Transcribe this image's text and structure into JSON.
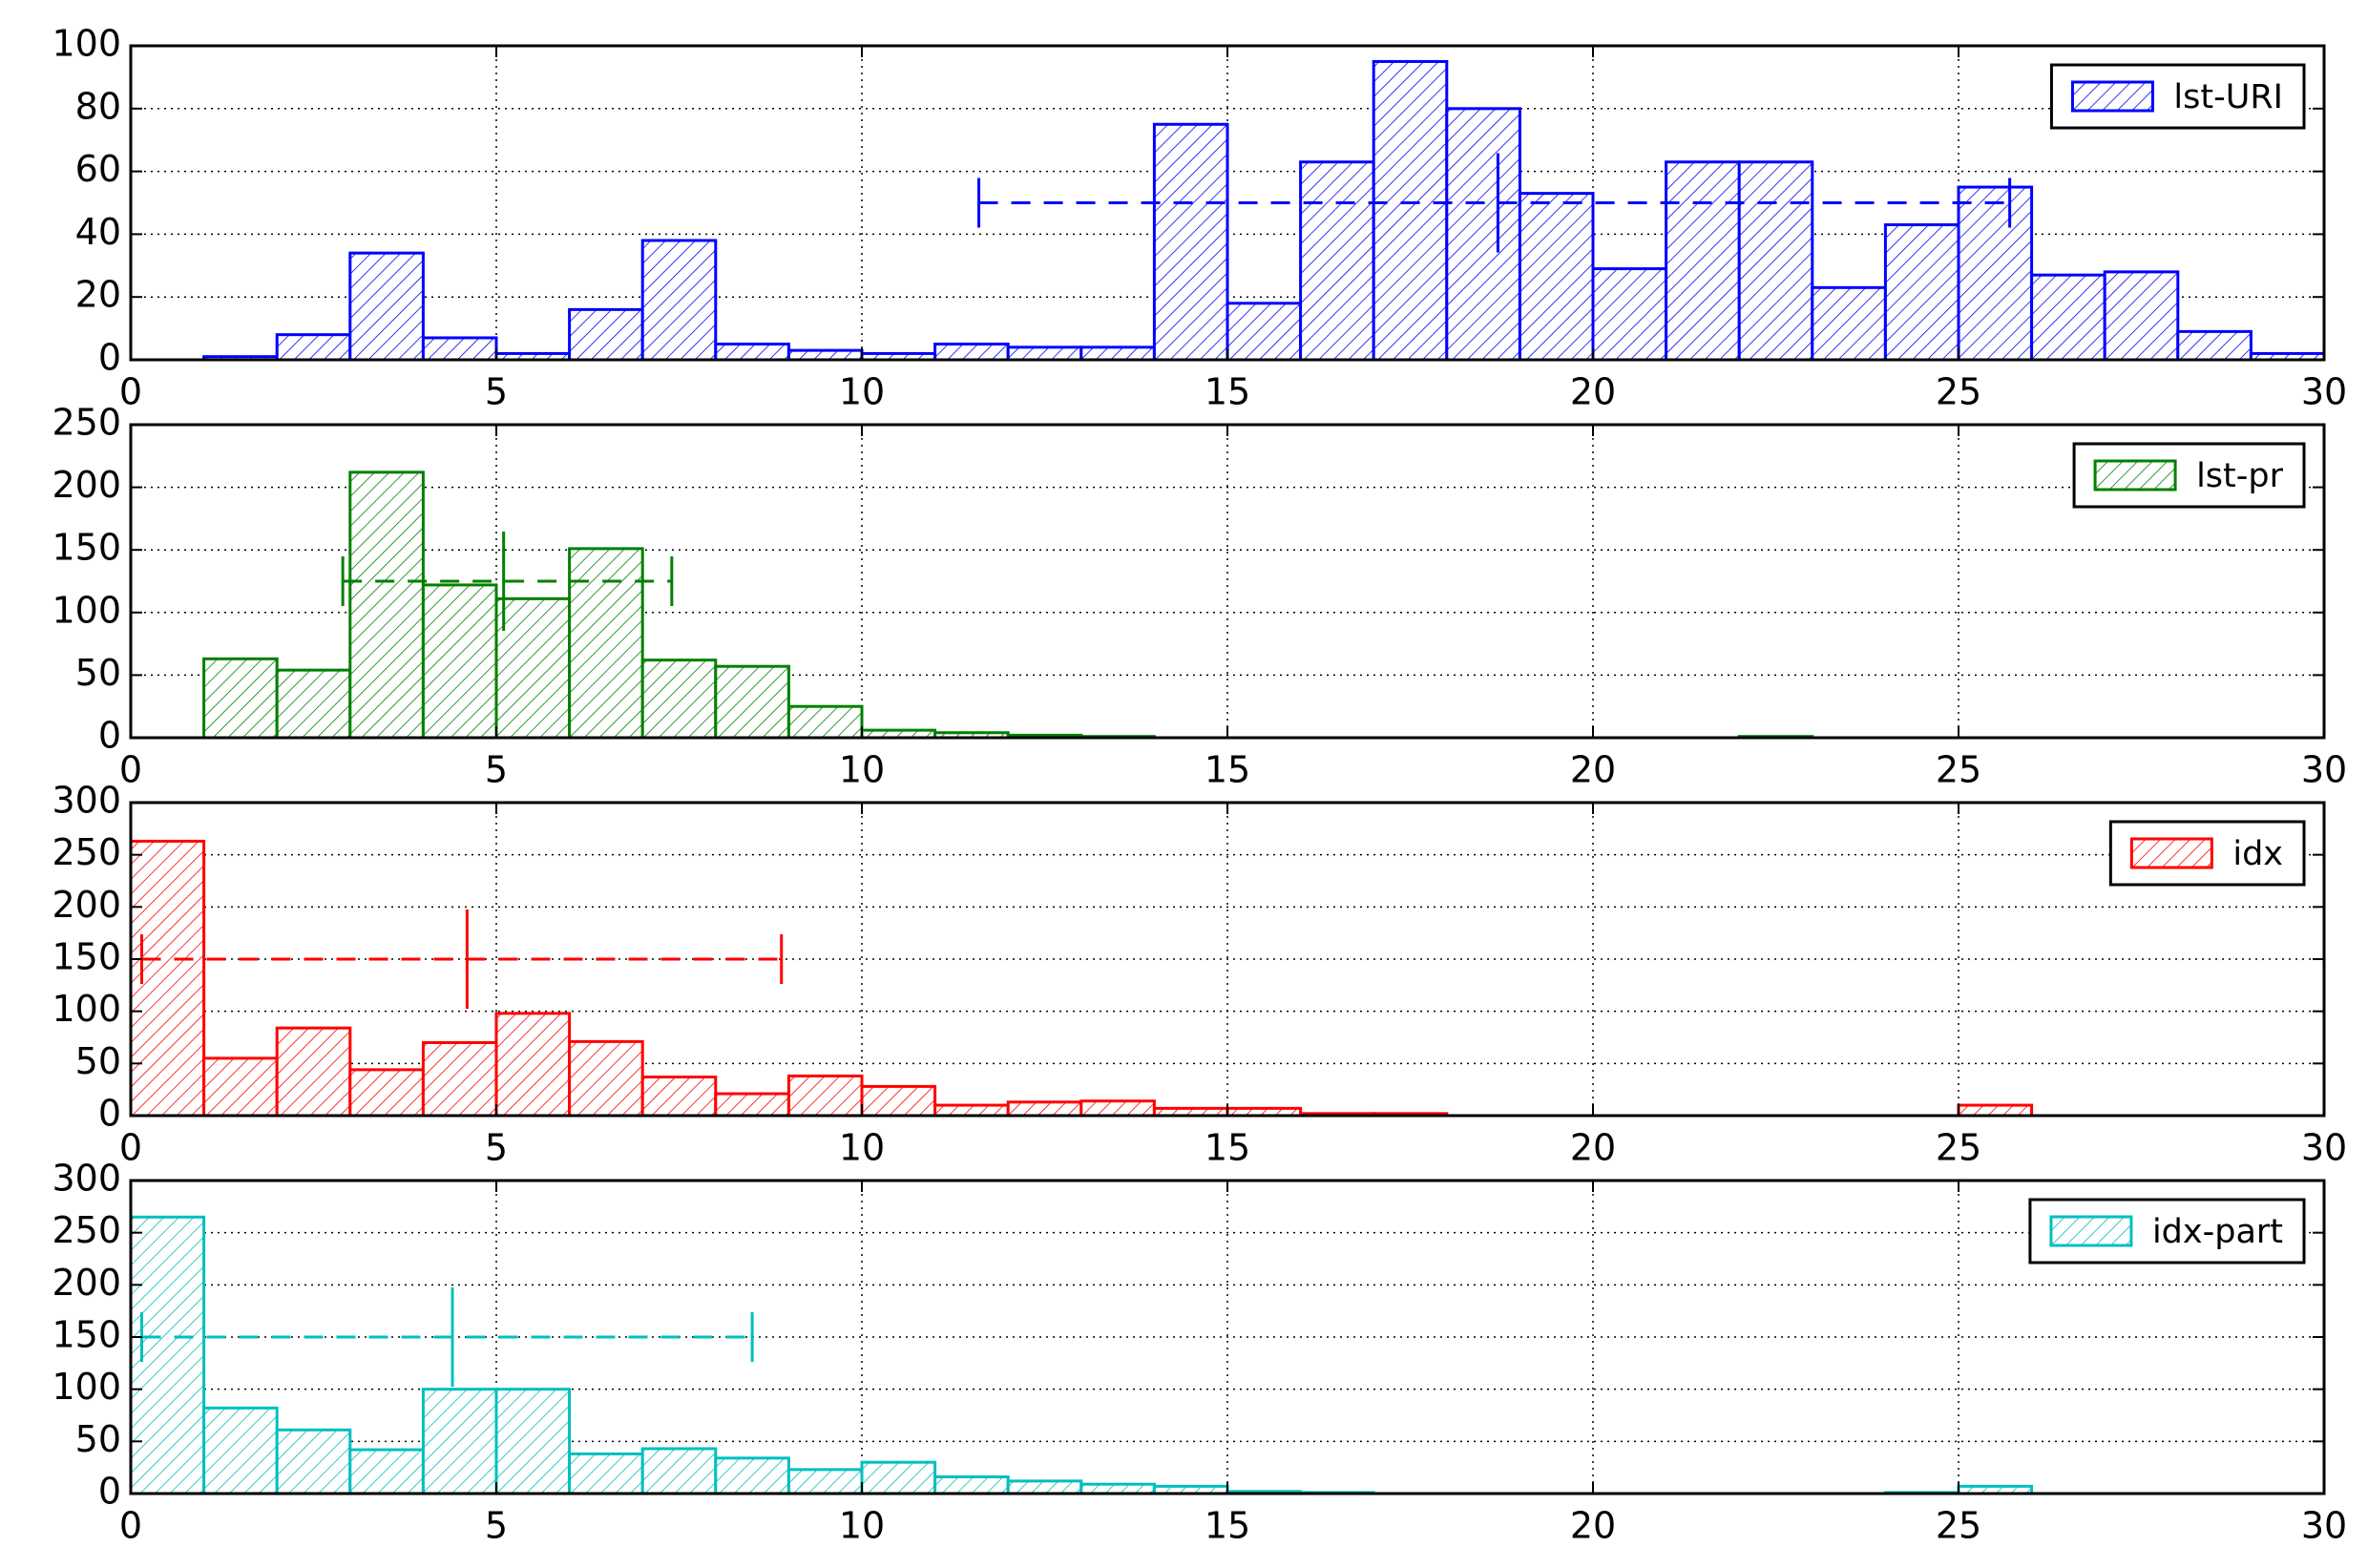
{
  "chart_data": [
    {
      "type": "histogram",
      "name": "lst-URI",
      "color": "#0000ff",
      "legend": "upper right",
      "grid": true,
      "bins": [
        0,
        1,
        2,
        3,
        4,
        5,
        6,
        7,
        8,
        9,
        10,
        11,
        12,
        13,
        14,
        15,
        16,
        17,
        18,
        19,
        20,
        21,
        22,
        23,
        24,
        25,
        26,
        27,
        28,
        29,
        30
      ],
      "counts": [
        0,
        1,
        8,
        34,
        7,
        2,
        16,
        38,
        5,
        3,
        2,
        5,
        4,
        4,
        75,
        18,
        63,
        95,
        80,
        53,
        29,
        63,
        63,
        23,
        43,
        55,
        27,
        28,
        9,
        2
      ],
      "range_marker": {
        "y": 50,
        "x": [
          11.6,
          18.7,
          25.7
        ]
      },
      "xlim": [
        0,
        30
      ],
      "xticks": [
        0,
        5,
        10,
        15,
        20,
        25,
        30
      ],
      "ylim": [
        0,
        100
      ],
      "yticks": [
        0,
        20,
        40,
        60,
        80,
        100
      ]
    },
    {
      "type": "histogram",
      "name": "lst-pr",
      "color": "#008000",
      "legend": "upper right",
      "grid": true,
      "bins": [
        0,
        1,
        2,
        3,
        4,
        5,
        6,
        7,
        8,
        9,
        10,
        11,
        12,
        13,
        14,
        15,
        16,
        17,
        18,
        19,
        20,
        21,
        22,
        23,
        24,
        25,
        26,
        27,
        28,
        29,
        30
      ],
      "counts": [
        0,
        63,
        54,
        212,
        122,
        111,
        151,
        62,
        57,
        25,
        6,
        4,
        2,
        1,
        0,
        0,
        0,
        0,
        0,
        0,
        0,
        0,
        1,
        0,
        0,
        0,
        0,
        0,
        0,
        0
      ],
      "range_marker": {
        "y": 125,
        "x": [
          2.9,
          5.1,
          7.4
        ]
      },
      "xlim": [
        0,
        30
      ],
      "xticks": [
        0,
        5,
        10,
        15,
        20,
        25,
        30
      ],
      "ylim": [
        0,
        250
      ],
      "yticks": [
        0,
        50,
        100,
        150,
        200,
        250
      ]
    },
    {
      "type": "histogram",
      "name": "idx",
      "color": "#ff0000",
      "legend": "upper right",
      "grid": true,
      "bins": [
        0,
        1,
        2,
        3,
        4,
        5,
        6,
        7,
        8,
        9,
        10,
        11,
        12,
        13,
        14,
        15,
        16,
        17,
        18,
        19,
        20,
        21,
        22,
        23,
        24,
        25,
        26,
        27,
        28,
        29,
        30
      ],
      "counts": [
        263,
        55,
        84,
        44,
        70,
        98,
        71,
        37,
        21,
        38,
        28,
        10,
        13,
        14,
        7,
        7,
        2,
        2,
        0,
        0,
        0,
        0,
        0,
        0,
        0,
        10,
        0,
        0,
        0,
        0
      ],
      "range_marker": {
        "y": 150,
        "x": [
          0.15,
          4.6,
          8.9
        ]
      },
      "xlim": [
        0,
        30
      ],
      "xticks": [
        0,
        5,
        10,
        15,
        20,
        25,
        30
      ],
      "ylim": [
        0,
        300
      ],
      "yticks": [
        0,
        50,
        100,
        150,
        200,
        250,
        300
      ]
    },
    {
      "type": "histogram",
      "name": "idx-part",
      "color": "#00bfbf",
      "legend": "upper right",
      "grid": true,
      "bins": [
        0,
        1,
        2,
        3,
        4,
        5,
        6,
        7,
        8,
        9,
        10,
        11,
        12,
        13,
        14,
        15,
        16,
        17,
        18,
        19,
        20,
        21,
        22,
        23,
        24,
        25,
        26,
        27,
        28,
        29,
        30
      ],
      "counts": [
        265,
        82,
        61,
        42,
        100,
        100,
        38,
        43,
        34,
        23,
        30,
        16,
        12,
        9,
        7,
        2,
        1,
        0,
        0,
        0,
        0,
        0,
        0,
        0,
        1,
        7,
        0,
        0,
        0,
        0
      ],
      "range_marker": {
        "y": 150,
        "x": [
          0.15,
          4.4,
          8.5
        ]
      },
      "xlim": [
        0,
        30
      ],
      "xticks": [
        0,
        5,
        10,
        15,
        20,
        25,
        30
      ],
      "ylim": [
        0,
        300
      ],
      "yticks": [
        0,
        50,
        100,
        150,
        200,
        250,
        300
      ]
    }
  ]
}
